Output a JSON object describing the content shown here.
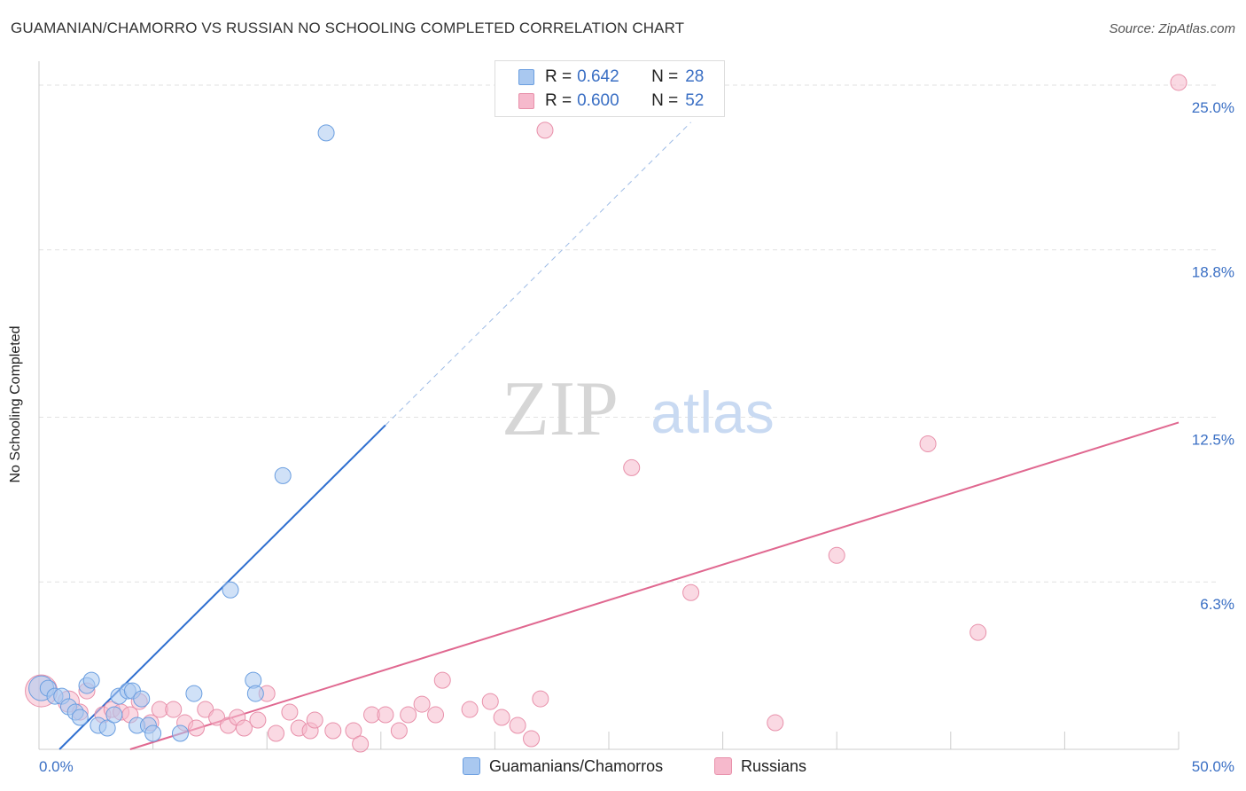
{
  "title": "GUAMANIAN/CHAMORRO VS RUSSIAN NO SCHOOLING COMPLETED CORRELATION CHART",
  "source": "Source: ZipAtlas.com",
  "watermark": {
    "zip": "ZIP",
    "atlas": "atlas"
  },
  "legend": {
    "r_label": "R =",
    "n_label": "N =",
    "series": [
      {
        "r": "0.642",
        "n": "28"
      },
      {
        "r": "0.600",
        "n": "52"
      }
    ]
  },
  "colors": {
    "blue_fill": "#a9c8f0",
    "blue_stroke": "#6a9ee0",
    "blue_line": "#2f6fd0",
    "pink_fill": "#f6b9cc",
    "pink_stroke": "#e890aa",
    "pink_line": "#e06890",
    "axis_text": "#3a6fc4",
    "grid": "#e2e2e2"
  },
  "chart_data": {
    "type": "scatter",
    "title": "GUAMANIAN/CHAMORRO VS RUSSIAN NO SCHOOLING COMPLETED CORRELATION CHART",
    "xlabel": "",
    "ylabel": "No Schooling Completed",
    "xlim": [
      0,
      50
    ],
    "ylim": [
      0,
      25.9
    ],
    "x_tick_labels": [
      {
        "value": 0,
        "label": "0.0%"
      },
      {
        "value": 50,
        "label": "50.0%"
      }
    ],
    "y_tick_labels": [
      {
        "value": 6.3,
        "label": "6.3%"
      },
      {
        "value": 12.5,
        "label": "12.5%"
      },
      {
        "value": 18.8,
        "label": "18.8%"
      },
      {
        "value": 25.0,
        "label": "25.0%"
      }
    ],
    "x_minor_ticks": [
      5,
      10,
      15,
      20,
      25,
      30,
      35,
      40,
      45,
      50
    ],
    "series": [
      {
        "name": "Guamanians/Chamorros",
        "color": "blue",
        "points": [
          {
            "x": 0.1,
            "y": 2.3,
            "s": 14
          },
          {
            "x": 0.4,
            "y": 2.3,
            "s": 9
          },
          {
            "x": 0.7,
            "y": 2.0,
            "s": 9
          },
          {
            "x": 1.0,
            "y": 2.0,
            "s": 9
          },
          {
            "x": 1.3,
            "y": 1.6,
            "s": 9
          },
          {
            "x": 1.6,
            "y": 1.4,
            "s": 9
          },
          {
            "x": 1.8,
            "y": 1.2,
            "s": 9
          },
          {
            "x": 2.1,
            "y": 2.4,
            "s": 9
          },
          {
            "x": 2.3,
            "y": 2.6,
            "s": 9
          },
          {
            "x": 2.6,
            "y": 0.9,
            "s": 9
          },
          {
            "x": 3.0,
            "y": 0.8,
            "s": 9
          },
          {
            "x": 3.3,
            "y": 1.3,
            "s": 9
          },
          {
            "x": 3.5,
            "y": 2.0,
            "s": 9
          },
          {
            "x": 3.9,
            "y": 2.2,
            "s": 9
          },
          {
            "x": 4.1,
            "y": 2.2,
            "s": 9
          },
          {
            "x": 4.3,
            "y": 0.9,
            "s": 9
          },
          {
            "x": 4.5,
            "y": 1.9,
            "s": 9
          },
          {
            "x": 4.8,
            "y": 0.9,
            "s": 9
          },
          {
            "x": 5.0,
            "y": 0.6,
            "s": 9
          },
          {
            "x": 6.2,
            "y": 0.6,
            "s": 9
          },
          {
            "x": 6.8,
            "y": 2.1,
            "s": 9
          },
          {
            "x": 8.4,
            "y": 6.0,
            "s": 9
          },
          {
            "x": 9.4,
            "y": 2.6,
            "s": 9
          },
          {
            "x": 9.5,
            "y": 2.1,
            "s": 9
          },
          {
            "x": 10.7,
            "y": 10.3,
            "s": 9
          },
          {
            "x": 12.6,
            "y": 23.2,
            "s": 9
          }
        ],
        "trendline": {
          "x1": 0.9,
          "y1": 0.0,
          "x2": 15.2,
          "y2": 12.2,
          "dashed_to_x": 28.6,
          "dashed_to_y": 23.6
        }
      },
      {
        "name": "Russians",
        "color": "pink",
        "points": [
          {
            "x": 0.1,
            "y": 2.2,
            "s": 18
          },
          {
            "x": 1.3,
            "y": 1.8,
            "s": 12
          },
          {
            "x": 1.8,
            "y": 1.4,
            "s": 9
          },
          {
            "x": 2.1,
            "y": 2.2,
            "s": 9
          },
          {
            "x": 2.8,
            "y": 1.3,
            "s": 9
          },
          {
            "x": 3.2,
            "y": 1.5,
            "s": 9
          },
          {
            "x": 3.6,
            "y": 1.4,
            "s": 9
          },
          {
            "x": 4.0,
            "y": 1.3,
            "s": 9
          },
          {
            "x": 4.4,
            "y": 1.8,
            "s": 9
          },
          {
            "x": 4.9,
            "y": 1.0,
            "s": 9
          },
          {
            "x": 5.3,
            "y": 1.5,
            "s": 9
          },
          {
            "x": 5.9,
            "y": 1.5,
            "s": 9
          },
          {
            "x": 6.4,
            "y": 1.0,
            "s": 9
          },
          {
            "x": 6.9,
            "y": 0.8,
            "s": 9
          },
          {
            "x": 7.3,
            "y": 1.5,
            "s": 9
          },
          {
            "x": 7.8,
            "y": 1.2,
            "s": 9
          },
          {
            "x": 8.3,
            "y": 0.9,
            "s": 9
          },
          {
            "x": 8.7,
            "y": 1.2,
            "s": 9
          },
          {
            "x": 9.0,
            "y": 0.8,
            "s": 9
          },
          {
            "x": 9.6,
            "y": 1.1,
            "s": 9
          },
          {
            "x": 10.0,
            "y": 2.1,
            "s": 9
          },
          {
            "x": 10.4,
            "y": 0.6,
            "s": 9
          },
          {
            "x": 11.0,
            "y": 1.4,
            "s": 9
          },
          {
            "x": 11.4,
            "y": 0.8,
            "s": 9
          },
          {
            "x": 11.9,
            "y": 0.7,
            "s": 9
          },
          {
            "x": 12.1,
            "y": 1.1,
            "s": 9
          },
          {
            "x": 12.9,
            "y": 0.7,
            "s": 9
          },
          {
            "x": 13.8,
            "y": 0.7,
            "s": 9
          },
          {
            "x": 14.1,
            "y": 0.2,
            "s": 9
          },
          {
            "x": 14.6,
            "y": 1.3,
            "s": 9
          },
          {
            "x": 15.2,
            "y": 1.3,
            "s": 9
          },
          {
            "x": 15.8,
            "y": 0.7,
            "s": 9
          },
          {
            "x": 16.2,
            "y": 1.3,
            "s": 9
          },
          {
            "x": 16.8,
            "y": 1.7,
            "s": 9
          },
          {
            "x": 17.4,
            "y": 1.3,
            "s": 9
          },
          {
            "x": 17.7,
            "y": 2.6,
            "s": 9
          },
          {
            "x": 18.9,
            "y": 1.5,
            "s": 9
          },
          {
            "x": 19.8,
            "y": 1.8,
            "s": 9
          },
          {
            "x": 20.3,
            "y": 1.2,
            "s": 9
          },
          {
            "x": 21.0,
            "y": 0.9,
            "s": 9
          },
          {
            "x": 21.6,
            "y": 0.4,
            "s": 9
          },
          {
            "x": 22.0,
            "y": 1.9,
            "s": 9
          },
          {
            "x": 22.2,
            "y": 23.3,
            "s": 9
          },
          {
            "x": 26.0,
            "y": 10.6,
            "s": 9
          },
          {
            "x": 28.6,
            "y": 5.9,
            "s": 9
          },
          {
            "x": 32.3,
            "y": 1.0,
            "s": 9
          },
          {
            "x": 35.0,
            "y": 7.3,
            "s": 9
          },
          {
            "x": 39.0,
            "y": 11.5,
            "s": 9
          },
          {
            "x": 41.2,
            "y": 4.4,
            "s": 9
          },
          {
            "x": 50.0,
            "y": 25.1,
            "s": 9
          }
        ],
        "trendline": {
          "x1": 4.0,
          "y1": 0.0,
          "x2": 50.0,
          "y2": 12.3
        }
      }
    ]
  }
}
